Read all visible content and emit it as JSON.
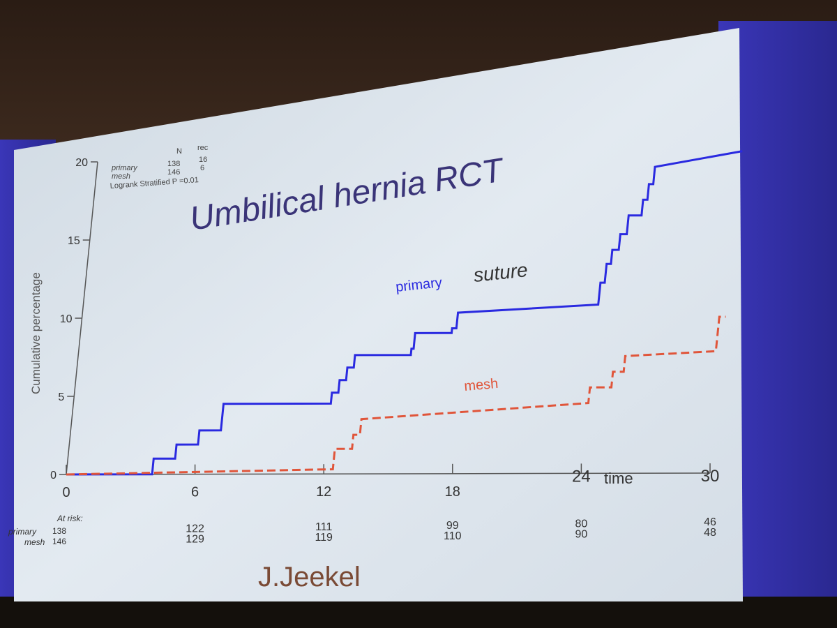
{
  "slide": {
    "title": "Umbilical hernia RCT",
    "footer": "J.Jeekel",
    "colors": {
      "primary_line": "#2a2ae0",
      "mesh_line": "#e0553a",
      "title_text": "#3a3478",
      "footer_text": "#7a4a35",
      "axis": "#555555",
      "slide_bg": "#dfe8f0"
    }
  },
  "chart_data": {
    "type": "line",
    "subtype": "kaplan-meier-step",
    "xlabel": "time",
    "ylabel": "Cumulative percentage",
    "xlim": [
      0,
      30
    ],
    "ylim": [
      0,
      20
    ],
    "x_ticks": [
      "0",
      "6",
      "12",
      "18",
      "24",
      "30"
    ],
    "y_ticks": [
      "0",
      "5",
      "10",
      "15",
      "20"
    ],
    "stats_table": {
      "headers": [
        "N",
        "rec"
      ],
      "rows": [
        {
          "label": "primary",
          "n": "138",
          "rec": "16"
        },
        {
          "label": "mesh",
          "n": "146",
          "rec": "6"
        }
      ],
      "test": "Logrank Stratified P =0.01"
    },
    "annotations": {
      "primary_label": "primary",
      "suture_label": "suture",
      "mesh_label": "mesh"
    },
    "series": [
      {
        "name": "primary",
        "style": "solid",
        "points": [
          [
            0,
            0
          ],
          [
            4,
            0
          ],
          [
            4,
            1.0
          ],
          [
            5,
            1.0
          ],
          [
            5,
            1.9
          ],
          [
            6,
            1.9
          ],
          [
            6,
            2.8
          ],
          [
            7,
            2.8
          ],
          [
            7,
            4.5
          ],
          [
            12,
            4.5
          ],
          [
            12,
            5.2
          ],
          [
            12.3,
            5.2
          ],
          [
            12.3,
            6.0
          ],
          [
            12.6,
            6.0
          ],
          [
            12.6,
            6.8
          ],
          [
            12.9,
            6.8
          ],
          [
            12.9,
            7.6
          ],
          [
            15.5,
            7.6
          ],
          [
            15.5,
            8.0
          ],
          [
            15.6,
            8.0
          ],
          [
            15.6,
            9.0
          ],
          [
            17.3,
            9.0
          ],
          [
            17.3,
            9.3
          ],
          [
            17.5,
            9.3
          ],
          [
            17.5,
            10.3
          ],
          [
            24,
            10.8
          ],
          [
            24,
            12.2
          ],
          [
            24.2,
            12.2
          ],
          [
            24.2,
            13.4
          ],
          [
            24.4,
            13.4
          ],
          [
            24.4,
            14.3
          ],
          [
            24.7,
            14.3
          ],
          [
            24.7,
            15.3
          ],
          [
            25.0,
            15.3
          ],
          [
            25.0,
            16.5
          ],
          [
            25.6,
            16.5
          ],
          [
            25.6,
            17.5
          ],
          [
            25.8,
            17.5
          ],
          [
            25.8,
            18.5
          ],
          [
            26.0,
            18.5
          ],
          [
            26.0,
            19.6
          ],
          [
            30,
            20.6
          ]
        ]
      },
      {
        "name": "mesh",
        "style": "dashed",
        "points": [
          [
            0,
            0
          ],
          [
            12.4,
            0.3
          ],
          [
            12.4,
            1.6
          ],
          [
            13.2,
            1.6
          ],
          [
            13.2,
            2.5
          ],
          [
            13.5,
            2.5
          ],
          [
            13.5,
            3.5
          ],
          [
            24,
            4.5
          ],
          [
            24,
            5.5
          ],
          [
            25,
            5.5
          ],
          [
            25,
            6.5
          ],
          [
            25.5,
            6.5
          ],
          [
            25.5,
            7.5
          ],
          [
            29.7,
            7.8
          ],
          [
            29.7,
            10.0
          ],
          [
            30,
            10.0
          ]
        ]
      }
    ],
    "at_risk": {
      "heading": "At risk:",
      "times": [
        0,
        6,
        12,
        18,
        24,
        30
      ],
      "rows": [
        {
          "label": "primary",
          "values": [
            "138",
            "122",
            "111",
            "99",
            "80",
            "46"
          ]
        },
        {
          "label": "mesh",
          "values": [
            "146",
            "129",
            "119",
            "110",
            "90",
            "48"
          ]
        }
      ]
    }
  }
}
